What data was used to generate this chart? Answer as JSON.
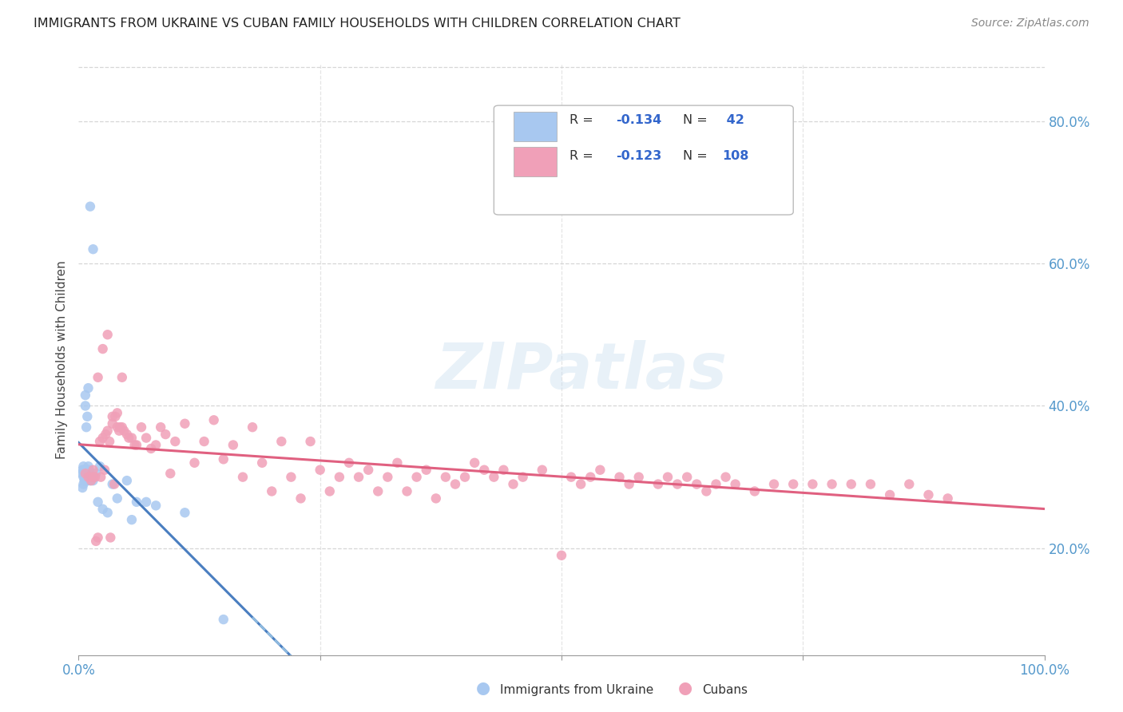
{
  "title": "IMMIGRANTS FROM UKRAINE VS CUBAN FAMILY HOUSEHOLDS WITH CHILDREN CORRELATION CHART",
  "source": "Source: ZipAtlas.com",
  "ylabel": "Family Households with Children",
  "legend_label1": "Immigrants from Ukraine",
  "legend_label2": "Cubans",
  "color_ukraine": "#a8c8f0",
  "color_cubans": "#f0a0b8",
  "color_line_ukraine": "#4a7ec0",
  "color_line_cubans": "#e06080",
  "color_line_ukraine_dash": "#90bce0",
  "ukraine_x": [
    0.003,
    0.004,
    0.004,
    0.005,
    0.005,
    0.005,
    0.006,
    0.006,
    0.006,
    0.007,
    0.007,
    0.007,
    0.008,
    0.008,
    0.008,
    0.008,
    0.009,
    0.009,
    0.009,
    0.01,
    0.01,
    0.01,
    0.011,
    0.012,
    0.012,
    0.013,
    0.015,
    0.015,
    0.018,
    0.02,
    0.022,
    0.025,
    0.03,
    0.035,
    0.04,
    0.05,
    0.055,
    0.06,
    0.07,
    0.08,
    0.11,
    0.15
  ],
  "ukraine_y": [
    0.305,
    0.285,
    0.31,
    0.3,
    0.29,
    0.315,
    0.295,
    0.31,
    0.305,
    0.3,
    0.4,
    0.415,
    0.295,
    0.31,
    0.305,
    0.37,
    0.295,
    0.31,
    0.385,
    0.305,
    0.315,
    0.425,
    0.31,
    0.295,
    0.68,
    0.3,
    0.295,
    0.62,
    0.305,
    0.265,
    0.315,
    0.255,
    0.25,
    0.29,
    0.27,
    0.295,
    0.24,
    0.265,
    0.265,
    0.26,
    0.25,
    0.1
  ],
  "cubans_x": [
    0.007,
    0.01,
    0.013,
    0.015,
    0.017,
    0.018,
    0.02,
    0.022,
    0.023,
    0.025,
    0.027,
    0.028,
    0.03,
    0.032,
    0.033,
    0.035,
    0.037,
    0.038,
    0.04,
    0.042,
    0.043,
    0.045,
    0.047,
    0.05,
    0.052,
    0.055,
    0.058,
    0.06,
    0.065,
    0.07,
    0.075,
    0.08,
    0.085,
    0.09,
    0.095,
    0.1,
    0.11,
    0.12,
    0.13,
    0.14,
    0.15,
    0.16,
    0.17,
    0.18,
    0.19,
    0.2,
    0.21,
    0.22,
    0.23,
    0.24,
    0.25,
    0.26,
    0.27,
    0.28,
    0.29,
    0.3,
    0.31,
    0.32,
    0.33,
    0.34,
    0.35,
    0.36,
    0.37,
    0.38,
    0.39,
    0.4,
    0.41,
    0.42,
    0.43,
    0.44,
    0.45,
    0.46,
    0.48,
    0.5,
    0.51,
    0.52,
    0.53,
    0.54,
    0.56,
    0.57,
    0.58,
    0.6,
    0.61,
    0.62,
    0.63,
    0.64,
    0.65,
    0.66,
    0.67,
    0.68,
    0.7,
    0.72,
    0.74,
    0.76,
    0.78,
    0.8,
    0.82,
    0.84,
    0.86,
    0.88,
    0.9,
    0.025,
    0.03,
    0.04,
    0.02,
    0.035,
    0.015,
    0.045
  ],
  "cubans_y": [
    0.305,
    0.3,
    0.295,
    0.31,
    0.3,
    0.21,
    0.215,
    0.35,
    0.3,
    0.355,
    0.31,
    0.36,
    0.365,
    0.35,
    0.215,
    0.375,
    0.29,
    0.385,
    0.37,
    0.365,
    0.37,
    0.37,
    0.365,
    0.36,
    0.355,
    0.355,
    0.345,
    0.345,
    0.37,
    0.355,
    0.34,
    0.345,
    0.37,
    0.36,
    0.305,
    0.35,
    0.375,
    0.32,
    0.35,
    0.38,
    0.325,
    0.345,
    0.3,
    0.37,
    0.32,
    0.28,
    0.35,
    0.3,
    0.27,
    0.35,
    0.31,
    0.28,
    0.3,
    0.32,
    0.3,
    0.31,
    0.28,
    0.3,
    0.32,
    0.28,
    0.3,
    0.31,
    0.27,
    0.3,
    0.29,
    0.3,
    0.32,
    0.31,
    0.3,
    0.31,
    0.29,
    0.3,
    0.31,
    0.19,
    0.3,
    0.29,
    0.3,
    0.31,
    0.3,
    0.29,
    0.3,
    0.29,
    0.3,
    0.29,
    0.3,
    0.29,
    0.28,
    0.29,
    0.3,
    0.29,
    0.28,
    0.29,
    0.29,
    0.29,
    0.29,
    0.29,
    0.29,
    0.275,
    0.29,
    0.275,
    0.27,
    0.48,
    0.5,
    0.39,
    0.44,
    0.385,
    0.3,
    0.44
  ],
  "xlim": [
    0.0,
    1.0
  ],
  "ylim": [
    0.05,
    0.88
  ],
  "yticks": [
    0.2,
    0.4,
    0.6,
    0.8
  ],
  "ytick_labels": [
    "20.0%",
    "40.0%",
    "60.0%",
    "80.0%"
  ],
  "xtick_labels_left": "0.0%",
  "xtick_labels_right": "100.0%"
}
